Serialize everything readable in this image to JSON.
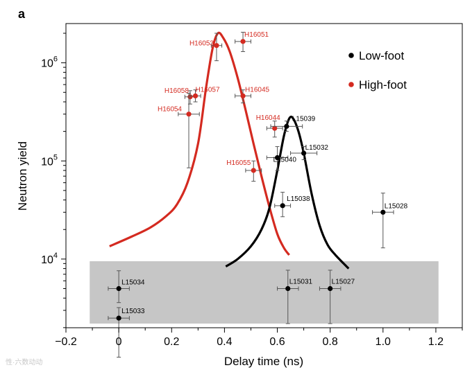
{
  "chart_data": {
    "type": "scatter",
    "panel_label": "a",
    "title": "",
    "xlabel": "Delay time (ns)",
    "ylabel": "Neutron yield",
    "xlim": [
      -0.2,
      1.3
    ],
    "ylim_log10": [
      3.3,
      6.4
    ],
    "x_ticks": [
      -0.2,
      0,
      0.2,
      0.4,
      0.6,
      0.8,
      1.0,
      1.2
    ],
    "x_tick_labels": [
      "−0.2",
      "0",
      "0.2",
      "0.4",
      "0.6",
      "0.8",
      "1.0",
      "1.2"
    ],
    "y_ticks_log10": [
      4,
      5,
      6
    ],
    "y_tick_mantissa": "10",
    "y_tick_exponents": [
      "4",
      "5",
      "6"
    ],
    "gray_band": {
      "x": [
        -0.11,
        1.21
      ],
      "y": [
        2200,
        9500
      ]
    },
    "colors": {
      "low_foot": "#000000",
      "high_foot": "#d42a20",
      "band": "#c6c6c6"
    },
    "legend": [
      {
        "label": "Low-foot",
        "color": "#000000"
      },
      {
        "label": "High-foot",
        "color": "#d42a20"
      }
    ],
    "series": [
      {
        "name": "High-foot",
        "color": "#d42a20",
        "points": [
          {
            "label": "H16053",
            "x": 0.37,
            "y": 1500000,
            "xerr": 0.02,
            "ylo": 1050000,
            "yhi": 2000000
          },
          {
            "label": "H16051",
            "x": 0.47,
            "y": 1650000,
            "xerr": 0.03,
            "ylo": 1300000,
            "yhi": 2050000
          },
          {
            "label": "H16058",
            "x": 0.27,
            "y": 450000,
            "xerr": 0.02,
            "ylo": 380000,
            "yhi": 520000
          },
          {
            "label": "H16057",
            "x": 0.29,
            "y": 460000,
            "xerr": 0.02,
            "ylo": 400000,
            "yhi": 530000
          },
          {
            "label": "H16045",
            "x": 0.47,
            "y": 460000,
            "xerr": 0.03,
            "ylo": 390000,
            "yhi": 530000
          },
          {
            "label": "H16054",
            "x": 0.265,
            "y": 300000,
            "xerr": 0.04,
            "ylo": 85000,
            "yhi": 490000
          },
          {
            "label": "H16044",
            "x": 0.59,
            "y": 215000,
            "xerr": 0.03,
            "ylo": 175000,
            "yhi": 255000
          },
          {
            "label": "H16055",
            "x": 0.51,
            "y": 80000,
            "xerr": 0.03,
            "ylo": 62000,
            "yhi": 100000
          }
        ]
      },
      {
        "name": "Low-foot",
        "color": "#000000",
        "points": [
          {
            "label": "L15039",
            "x": 0.635,
            "y": 225000,
            "xerr": 0.06,
            "ylo": 200000,
            "yhi": 255000
          },
          {
            "label": "L15032",
            "x": 0.7,
            "y": 120000,
            "xerr": 0.05,
            "ylo": 103000,
            "yhi": 140000
          },
          {
            "label": "L15040",
            "x": 0.6,
            "y": 108000,
            "xerr": 0.04,
            "ylo": 80000,
            "yhi": 140000
          },
          {
            "label": "L15038",
            "x": 0.62,
            "y": 35000,
            "xerr": 0.03,
            "ylo": 27000,
            "yhi": 48000
          },
          {
            "label": "L15028",
            "x": 1.0,
            "y": 30000,
            "xerr": 0.04,
            "ylo": 13000,
            "yhi": 47000
          },
          {
            "label": "L15034",
            "x": 0.0,
            "y": 5000,
            "xerr": 0.04,
            "ylo": 3600,
            "yhi": 7600
          },
          {
            "label": "L15031",
            "x": 0.64,
            "y": 5000,
            "xerr": 0.04,
            "ylo": 2200,
            "yhi": 7700
          },
          {
            "label": "L15027",
            "x": 0.8,
            "y": 5000,
            "xerr": 0.04,
            "ylo": 2200,
            "yhi": 7700
          },
          {
            "label": "L15033",
            "x": 0.0,
            "y": 2500,
            "xerr": 0.04,
            "ylo": 1000,
            "yhi": 3200
          }
        ]
      }
    ],
    "fit_curves": [
      {
        "name": "High-foot fit",
        "color": "#d42a20",
        "x": [
          -0.035,
          0.05,
          0.12,
          0.18,
          0.22,
          0.26,
          0.3,
          0.33,
          0.355,
          0.375,
          0.395,
          0.42,
          0.45,
          0.48,
          0.51,
          0.54,
          0.57,
          0.6,
          0.625,
          0.645
        ],
        "y": [
          13500,
          17000,
          21000,
          27500,
          36000,
          60000,
          150000,
          550000,
          1400000,
          2000000,
          1800000,
          1300000,
          700000,
          330000,
          150000,
          70000,
          34000,
          18000,
          13000,
          11000
        ]
      },
      {
        "name": "Low-foot fit",
        "color": "#000000",
        "x": [
          0.405,
          0.45,
          0.5,
          0.54,
          0.57,
          0.6,
          0.625,
          0.645,
          0.66,
          0.68,
          0.7,
          0.73,
          0.76,
          0.79,
          0.82,
          0.87
        ],
        "y": [
          8400,
          10000,
          13500,
          20000,
          33000,
          80000,
          180000,
          270000,
          270000,
          200000,
          120000,
          46000,
          22000,
          14000,
          11000,
          8000
        ]
      }
    ],
    "watermark": "性·六数动动"
  }
}
